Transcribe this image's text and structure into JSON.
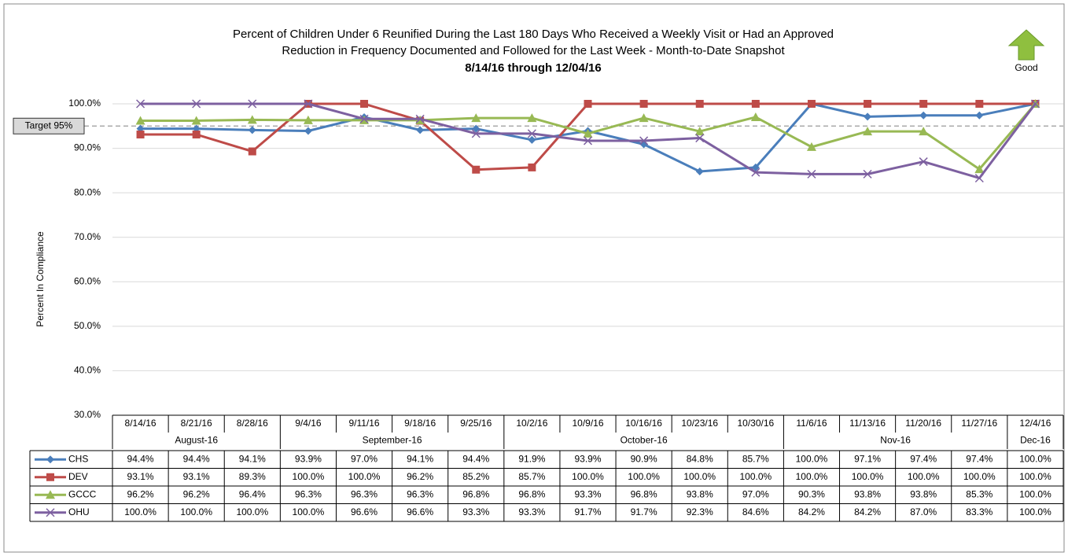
{
  "chart_data": {
    "type": "line",
    "title": [
      "Percent of Children Under 6 Reunified During the Last 180 Days Who Received a Weekly Visit or Had an Approved",
      "Reduction in Frequency Documented and Followed for the Last Week - Month-to-Date Snapshot"
    ],
    "subtitle": "8/14/16 through 12/04/16",
    "ylabel": "Percent In Compliance",
    "good_label": "Good",
    "target": {
      "value": 95,
      "label": "Target 95%"
    },
    "categories": [
      "8/14/16",
      "8/21/16",
      "8/28/16",
      "9/4/16",
      "9/11/16",
      "9/18/16",
      "9/25/16",
      "10/2/16",
      "10/9/16",
      "10/16/16",
      "10/23/16",
      "10/30/16",
      "11/6/16",
      "11/13/16",
      "11/20/16",
      "11/27/16",
      "12/4/16"
    ],
    "month_groups": [
      {
        "label": "August-16",
        "span": 3
      },
      {
        "label": "September-16",
        "span": 4
      },
      {
        "label": "October-16",
        "span": 5
      },
      {
        "label": "Nov-16",
        "span": 4
      },
      {
        "label": "Dec-16",
        "span": 1
      }
    ],
    "series": [
      {
        "name": "CHS",
        "color": "#4a7ebb",
        "marker": "diamond",
        "values": [
          94.4,
          94.4,
          94.1,
          93.9,
          97.0,
          94.1,
          94.4,
          91.9,
          93.9,
          90.9,
          84.8,
          85.7,
          100.0,
          97.1,
          97.4,
          97.4,
          100.0
        ],
        "value_labels": [
          "94.4%",
          "94.4%",
          "94.1%",
          "93.9%",
          "97.0%",
          "94.1%",
          "94.4%",
          "91.9%",
          "93.9%",
          "90.9%",
          "84.8%",
          "85.7%",
          "100.0%",
          "97.1%",
          "97.4%",
          "97.4%",
          "100.0%"
        ]
      },
      {
        "name": "DEV",
        "color": "#be4b48",
        "marker": "square",
        "values": [
          93.1,
          93.1,
          89.3,
          100.0,
          100.0,
          96.2,
          85.2,
          85.7,
          100.0,
          100.0,
          100.0,
          100.0,
          100.0,
          100.0,
          100.0,
          100.0,
          100.0
        ],
        "value_labels": [
          "93.1%",
          "93.1%",
          "89.3%",
          "100.0%",
          "100.0%",
          "96.2%",
          "85.2%",
          "85.7%",
          "100.0%",
          "100.0%",
          "100.0%",
          "100.0%",
          "100.0%",
          "100.0%",
          "100.0%",
          "100.0%",
          "100.0%"
        ]
      },
      {
        "name": "GCCC",
        "color": "#98b954",
        "marker": "triangle",
        "values": [
          96.2,
          96.2,
          96.4,
          96.3,
          96.3,
          96.3,
          96.8,
          96.8,
          93.3,
          96.8,
          93.8,
          97.0,
          90.3,
          93.8,
          93.8,
          85.3,
          100.0
        ],
        "value_labels": [
          "96.2%",
          "96.2%",
          "96.4%",
          "96.3%",
          "96.3%",
          "96.3%",
          "96.8%",
          "96.8%",
          "93.3%",
          "96.8%",
          "93.8%",
          "97.0%",
          "90.3%",
          "93.8%",
          "93.8%",
          "85.3%",
          "100.0%"
        ]
      },
      {
        "name": "OHU",
        "color": "#7d60a0",
        "marker": "x",
        "values": [
          100.0,
          100.0,
          100.0,
          100.0,
          96.6,
          96.6,
          93.3,
          93.3,
          91.7,
          91.7,
          92.3,
          84.6,
          84.2,
          84.2,
          87.0,
          83.3,
          100.0
        ],
        "value_labels": [
          "100.0%",
          "100.0%",
          "100.0%",
          "100.0%",
          "96.6%",
          "96.6%",
          "93.3%",
          "93.3%",
          "91.7%",
          "91.7%",
          "92.3%",
          "84.6%",
          "84.2%",
          "84.2%",
          "87.0%",
          "83.3%",
          "100.0%"
        ]
      }
    ],
    "ylim": [
      30,
      100
    ],
    "yticks": [
      {
        "value": 30,
        "label": "30.0%"
      },
      {
        "value": 40,
        "label": "40.0%"
      },
      {
        "value": 50,
        "label": "50.0%"
      },
      {
        "value": 60,
        "label": "60.0%"
      },
      {
        "value": 70,
        "label": "70.0%"
      },
      {
        "value": 80,
        "label": "80.0%"
      },
      {
        "value": 90,
        "label": "90.0%"
      },
      {
        "value": 100,
        "label": "100.0%"
      }
    ],
    "grid": true
  }
}
